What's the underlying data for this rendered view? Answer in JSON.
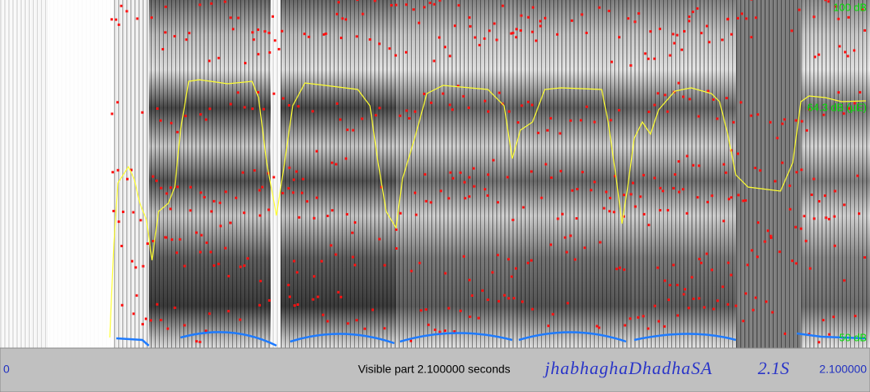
{
  "spectrogram": {
    "labels": {
      "top": "100 dB",
      "middle": "64.3 dB (μE)",
      "bottom": "50 dB"
    }
  },
  "status_bar": {
    "start": "0",
    "visible_part": "Visible part 2.100000 seconds",
    "transcription": "jhabhaghaDhadhaSA",
    "duration_label": "2.1S",
    "end": "2.100000"
  }
}
